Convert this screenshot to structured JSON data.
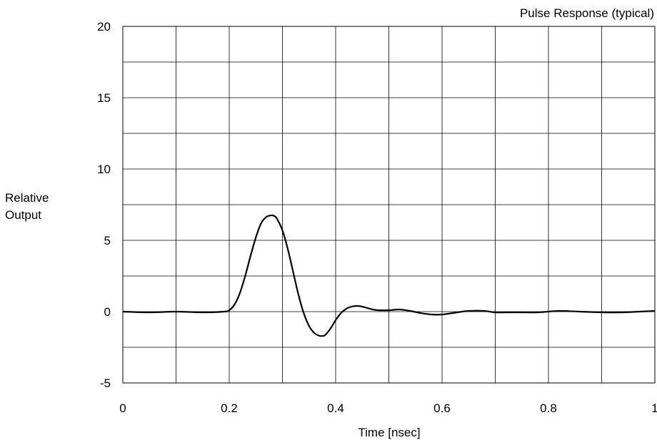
{
  "chart_data": {
    "type": "line",
    "title": "Pulse Response (typical)",
    "xlabel": "Time  [nsec]",
    "ylabel": [
      "Relative",
      "Output"
    ],
    "xlim": [
      0,
      1
    ],
    "ylim": [
      -5,
      20
    ],
    "x_ticks": [
      0,
      0.2,
      0.4,
      0.6,
      0.8,
      1
    ],
    "x_tick_labels": [
      "0",
      "0.2",
      "0.4",
      "0.6",
      "0.8",
      "1"
    ],
    "y_ticks": [
      -5,
      0,
      5,
      10,
      15,
      20
    ],
    "y_tick_labels": [
      "-5",
      "0",
      "5",
      "10",
      "15",
      "20"
    ],
    "grid": true,
    "x_grid_step": 0.1,
    "y_grid_step": 2.5,
    "series": [
      {
        "x": [
          0,
          0.05,
          0.1,
          0.15,
          0.19,
          0.2,
          0.21,
          0.22,
          0.23,
          0.24,
          0.25,
          0.26,
          0.27,
          0.28,
          0.285,
          0.29,
          0.3,
          0.31,
          0.32,
          0.33,
          0.34,
          0.35,
          0.36,
          0.37,
          0.375,
          0.38,
          0.39,
          0.4,
          0.41,
          0.42,
          0.43,
          0.44,
          0.45,
          0.46,
          0.47,
          0.48,
          0.5,
          0.52,
          0.54,
          0.56,
          0.58,
          0.6,
          0.62,
          0.65,
          0.68,
          0.7,
          0.74,
          0.78,
          0.82,
          0.86,
          0.9,
          0.94,
          0.97,
          1.0
        ],
        "y": [
          0,
          -0.05,
          0,
          -0.05,
          0,
          0.1,
          0.5,
          1.3,
          2.5,
          3.9,
          5.2,
          6.2,
          6.65,
          6.75,
          6.7,
          6.5,
          5.7,
          4.4,
          2.8,
          1.2,
          -0.1,
          -1.0,
          -1.5,
          -1.7,
          -1.7,
          -1.65,
          -1.2,
          -0.6,
          -0.1,
          0.2,
          0.35,
          0.4,
          0.35,
          0.25,
          0.15,
          0.1,
          0.1,
          0.15,
          0.05,
          -0.1,
          -0.2,
          -0.2,
          -0.1,
          0.05,
          0.05,
          -0.05,
          -0.05,
          -0.05,
          0.05,
          0.0,
          -0.05,
          -0.05,
          0.0,
          0.05
        ]
      }
    ]
  }
}
